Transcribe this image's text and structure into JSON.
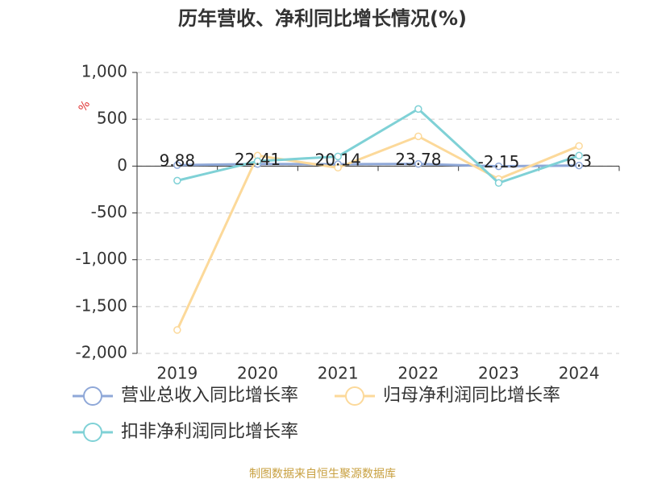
{
  "chart_data": {
    "type": "line",
    "title": "历年营收、净利同比增长情况(%)",
    "y_label": "%",
    "categories": [
      "2019",
      "2020",
      "2021",
      "2022",
      "2023",
      "2024"
    ],
    "series": [
      {
        "name": "营业总收入同比增长率",
        "color": "#8fa8d8",
        "values": [
          9.88,
          22.41,
          20.14,
          23.78,
          -2.15,
          6.3
        ],
        "show_labels": true
      },
      {
        "name": "归母净利润同比增长率",
        "color": "#fcd99a",
        "values": [
          -1750,
          112,
          -17,
          318,
          -138,
          215
        ],
        "show_labels": false
      },
      {
        "name": "扣非净利润同比增长率",
        "color": "#7fd1d6",
        "values": [
          -155,
          52,
          103,
          610,
          -180,
          112
        ],
        "show_labels": false
      }
    ],
    "ylim": [
      -2000,
      1000
    ],
    "yticks": [
      {
        "value": 1000,
        "label": "1,000"
      },
      500,
      0,
      -500,
      {
        "value": -1000,
        "label": "-1,000"
      },
      {
        "value": -1500,
        "label": "-1,500"
      },
      {
        "value": -2000,
        "label": "-2,000"
      }
    ],
    "grid": true,
    "footer": "制图数据来自恒生聚源数据库"
  }
}
